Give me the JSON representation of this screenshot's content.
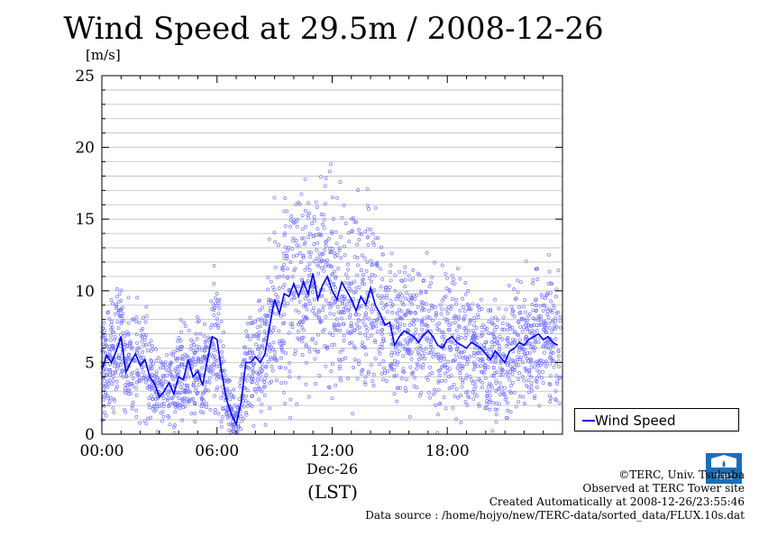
{
  "chart_data": {
    "type": "scatter",
    "title": "Wind Speed at 29.5m / 2008-12-26",
    "ylabel": "[m/s]",
    "ylim": [
      0,
      25
    ],
    "yticks": [
      "0",
      "5",
      "10",
      "15",
      "20",
      "25"
    ],
    "xlim": [
      0,
      24
    ],
    "xticks": [
      "00:00",
      "06:00",
      "12:00",
      "18:00"
    ],
    "xsub": "Dec-26",
    "xlabel": "(LST)",
    "legend": "Wind Speed",
    "legend_position": "right",
    "grid": true,
    "colors": {
      "line": "#0000ee",
      "points": "#7777ff"
    },
    "series": [
      {
        "name": "Wind Speed",
        "x": [
          0,
          0.25,
          0.5,
          0.75,
          1.0,
          1.25,
          1.5,
          1.75,
          2.0,
          2.25,
          2.5,
          2.75,
          3.0,
          3.25,
          3.5,
          3.75,
          4.0,
          4.25,
          4.5,
          4.75,
          5.0,
          5.25,
          5.5,
          5.75,
          6.0,
          6.25,
          6.5,
          6.75,
          7.0,
          7.25,
          7.5,
          7.75,
          8.0,
          8.25,
          8.5,
          8.75,
          9.0,
          9.25,
          9.5,
          9.75,
          10.0,
          10.25,
          10.5,
          10.75,
          11.0,
          11.25,
          11.5,
          11.75,
          12.0,
          12.25,
          12.5,
          12.75,
          13.0,
          13.25,
          13.5,
          13.75,
          14.0,
          14.25,
          14.5,
          14.75,
          15.0,
          15.25,
          15.5,
          15.75,
          16.0,
          16.25,
          16.5,
          16.75,
          17.0,
          17.25,
          17.5,
          17.75,
          18.0,
          18.25,
          18.5,
          18.75,
          19.0,
          19.25,
          19.5,
          19.75,
          20.0,
          20.25,
          20.5,
          20.75,
          21.0,
          21.25,
          21.5,
          21.75,
          22.0,
          22.25,
          22.5,
          22.75,
          23.0,
          23.25,
          23.5,
          23.75
        ],
        "values": [
          4.5,
          5.5,
          5.0,
          5.8,
          6.8,
          4.3,
          5.0,
          5.6,
          4.8,
          5.2,
          4.0,
          3.5,
          2.6,
          3.0,
          3.6,
          2.8,
          4.0,
          3.8,
          5.2,
          4.0,
          4.4,
          3.4,
          5.2,
          6.8,
          6.6,
          4.2,
          2.4,
          1.4,
          0.7,
          2.2,
          5.0,
          5.0,
          5.4,
          5.0,
          5.6,
          7.6,
          9.4,
          8.4,
          9.8,
          9.6,
          10.5,
          9.6,
          10.6,
          9.8,
          11.2,
          9.4,
          10.4,
          11.0,
          10.0,
          9.4,
          10.6,
          10.0,
          9.4,
          8.6,
          9.6,
          9.0,
          10.2,
          9.0,
          8.4,
          7.6,
          7.8,
          6.2,
          6.8,
          7.2,
          7.0,
          6.8,
          6.4,
          6.9,
          7.2,
          6.8,
          6.2,
          6.0,
          6.6,
          6.8,
          6.4,
          6.2,
          6.0,
          6.4,
          6.2,
          6.0,
          5.6,
          5.2,
          5.8,
          5.4,
          5.0,
          5.8,
          6.0,
          6.4,
          6.2,
          6.6,
          6.8,
          7.0,
          6.6,
          6.8,
          6.4,
          6.2
        ]
      }
    ]
  },
  "legend_label": "Wind Speed",
  "credits": {
    "line1": "©TERC, Univ. Tsukuba",
    "line2": "Observed at TERC Tower site",
    "line3": "Created Automatically at 2008-12-26/23:55:46",
    "line4": "Data source : /home/hojyo/new/TERC-data/sorted_data/FLUX.10s.dat"
  },
  "logo_text": "TERC"
}
